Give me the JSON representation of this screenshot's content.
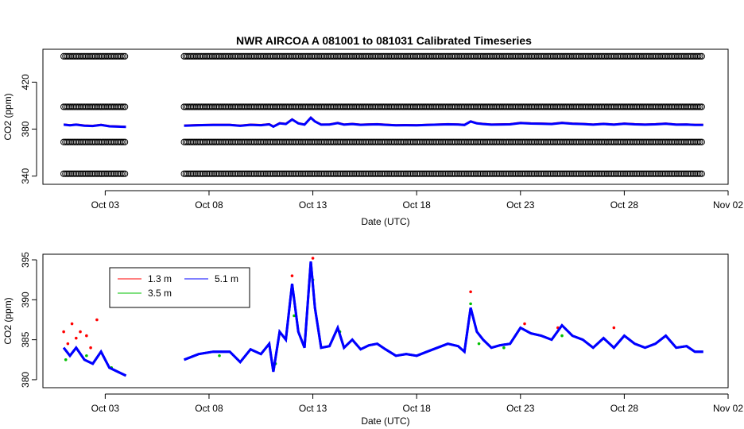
{
  "title": "NWR   AIRCOA  A   081001  to  081031   Calibrated Timeseries",
  "chart_data": [
    {
      "type": "scatter",
      "xlabel": "Date (UTC)",
      "ylabel": "CO2 (ppm)",
      "x_tick_labels": [
        "Oct 03",
        "Oct 08",
        "Oct 13",
        "Oct 18",
        "Oct 23",
        "Oct 28",
        "Nov 02"
      ],
      "x_tick_days": [
        3,
        8,
        13,
        18,
        23,
        28,
        33
      ],
      "xlim_days": [
        0.0,
        33.0
      ],
      "y_ticks": [
        340,
        380,
        420
      ],
      "ylim": [
        333,
        448
      ],
      "reference_rows": [
        342,
        369,
        399,
        442
      ],
      "segments_days": [
        [
          1.0,
          4.0
        ],
        [
          6.8,
          31.8
        ]
      ],
      "series": [
        {
          "name": "1.3 m",
          "color": "#ff0000"
        },
        {
          "name": "3.5 m",
          "color": "#00c000"
        },
        {
          "name": "5.1 m",
          "color": "#0000ff"
        }
      ]
    },
    {
      "type": "line",
      "xlabel": "Date (UTC)",
      "ylabel": "CO2 (ppm)",
      "x_tick_labels": [
        "Oct 03",
        "Oct 08",
        "Oct 13",
        "Oct 18",
        "Oct 23",
        "Oct 28",
        "Nov 02"
      ],
      "x_tick_days": [
        3,
        8,
        13,
        18,
        23,
        28,
        33
      ],
      "xlim_days": [
        0.0,
        33.0
      ],
      "y_ticks": [
        380,
        385,
        390,
        395
      ],
      "ylim": [
        379,
        395.7
      ],
      "legend": {
        "position": "top-left",
        "entries": [
          {
            "name": "1.3 m",
            "color": "#ff0000"
          },
          {
            "name": "3.5 m",
            "color": "#00c000"
          },
          {
            "name": "5.1 m",
            "color": "#0000ff"
          }
        ]
      },
      "series": [
        {
          "name": "5.1 m",
          "color": "#0000ff",
          "x": [
            1.0,
            1.3,
            1.6,
            2.0,
            2.4,
            2.8,
            3.2,
            3.6,
            4.0,
            6.8,
            7.5,
            8.2,
            9.0,
            9.5,
            10.0,
            10.5,
            10.9,
            11.1,
            11.4,
            11.7,
            12.0,
            12.3,
            12.6,
            12.9,
            13.1,
            13.4,
            13.8,
            14.2,
            14.5,
            14.9,
            15.3,
            15.7,
            16.1,
            16.5,
            17.0,
            17.5,
            18.0,
            18.5,
            19.0,
            19.5,
            20.0,
            20.3,
            20.6,
            20.9,
            21.2,
            21.6,
            22.0,
            22.5,
            23.0,
            23.5,
            24.0,
            24.5,
            25.0,
            25.5,
            26.0,
            26.5,
            27.0,
            27.5,
            28.0,
            28.5,
            29.0,
            29.5,
            30.0,
            30.5,
            31.0,
            31.4,
            31.8
          ],
          "y": [
            384,
            383,
            384,
            382.5,
            382,
            383.5,
            381.5,
            381,
            380.5,
            382.5,
            383.2,
            383.5,
            383.5,
            382.2,
            383.8,
            383.2,
            384.5,
            381.0,
            386.0,
            385.0,
            392.0,
            386.0,
            384.0,
            394.8,
            389.0,
            384.0,
            384.2,
            386.5,
            384.0,
            385.0,
            383.8,
            384.3,
            384.5,
            383.8,
            383.0,
            383.2,
            383.0,
            383.5,
            384.0,
            384.5,
            384.2,
            383.5,
            389.0,
            386.0,
            385.0,
            384.0,
            384.3,
            384.5,
            386.5,
            385.8,
            385.5,
            385.0,
            386.8,
            385.5,
            385.0,
            384.0,
            385.2,
            384.0,
            385.5,
            384.5,
            384.0,
            384.5,
            385.5,
            384.0,
            384.2,
            383.5,
            383.5
          ]
        },
        {
          "name": "3.5 m",
          "color": "#00c000",
          "x": [
            1.1,
            2.1,
            3.3,
            8.5,
            11.2,
            12.1,
            13.0,
            14.3,
            20.6,
            21.0,
            22.2,
            25.0
          ],
          "y": [
            382.5,
            383.0,
            381.5,
            383.0,
            382.0,
            388.0,
            392.5,
            386.0,
            389.5,
            384.5,
            384.0,
            385.5
          ]
        },
        {
          "name": "1.3 m",
          "color": "#ff0000",
          "x": [
            1.0,
            1.2,
            1.4,
            1.6,
            1.8,
            2.1,
            2.3,
            2.6,
            12.0,
            13.0,
            20.6,
            23.2,
            24.8,
            27.5
          ],
          "y": [
            386.0,
            384.5,
            387.0,
            385.2,
            386.0,
            385.5,
            384.0,
            387.5,
            393.0,
            395.2,
            391.0,
            387.0,
            386.5,
            386.5
          ]
        }
      ]
    }
  ]
}
